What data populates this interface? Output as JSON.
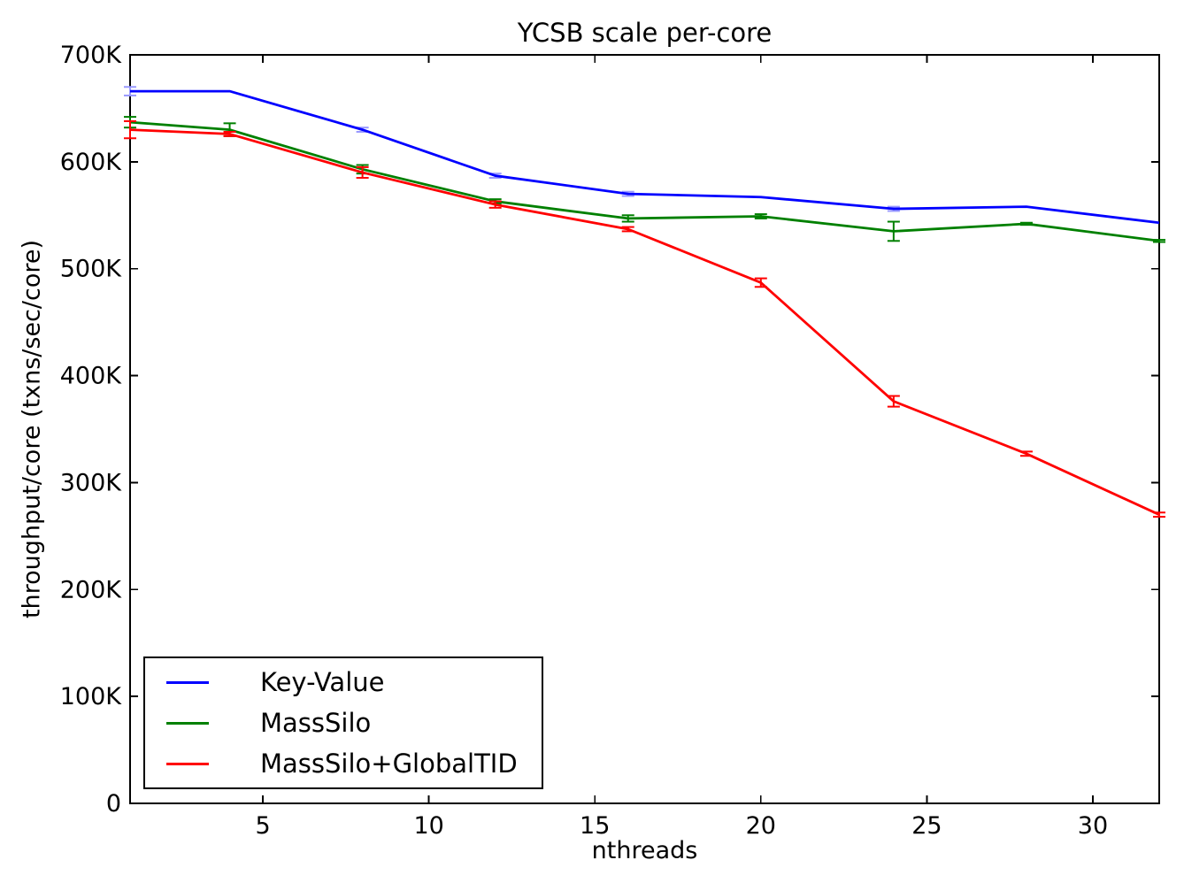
{
  "chart_data": {
    "type": "line",
    "title": "YCSB scale per-core",
    "xlabel": "nthreads",
    "ylabel": "throughput/core (txns/sec/core)",
    "x": [
      1,
      4,
      8,
      12,
      16,
      20,
      24,
      28,
      32
    ],
    "xlim": [
      1,
      32
    ],
    "ylim": [
      0,
      700000
    ],
    "xticks": [
      5,
      10,
      15,
      20,
      25,
      30
    ],
    "xtick_labels": [
      "5",
      "10",
      "15",
      "20",
      "25",
      "30"
    ],
    "yticks": [
      0,
      100000,
      200000,
      300000,
      400000,
      500000,
      600000,
      700000
    ],
    "ytick_labels": [
      "0",
      "100K",
      "200K",
      "300K",
      "400K",
      "500K",
      "600K",
      "700K"
    ],
    "grid": false,
    "legend_position": "lower-left",
    "axis_color": "#000000",
    "background_color": "#ffffff",
    "series": [
      {
        "name": "Key-Value",
        "color": "#0000ff",
        "error_color": "#9999ff",
        "values": [
          666000,
          666000,
          630000,
          587000,
          570000,
          567000,
          556000,
          558000,
          543000
        ],
        "errors": [
          4000,
          0,
          2000,
          2000,
          2000,
          0,
          2000,
          0,
          0
        ]
      },
      {
        "name": "MassSilo",
        "color": "#008000",
        "error_color": "#008000",
        "values": [
          637000,
          630000,
          593000,
          563000,
          547000,
          549000,
          535000,
          542000,
          526000
        ],
        "errors": [
          5000,
          6000,
          4000,
          2000,
          3000,
          2000,
          9000,
          1000,
          1000
        ]
      },
      {
        "name": "MassSilo+GlobalTID",
        "color": "#ff0000",
        "error_color": "#ff0000",
        "values": [
          630000,
          626000,
          590000,
          560000,
          537000,
          487000,
          376000,
          327000,
          270000
        ],
        "errors": [
          8000,
          2000,
          5000,
          3000,
          2000,
          4000,
          5000,
          2000,
          2000
        ]
      }
    ]
  }
}
